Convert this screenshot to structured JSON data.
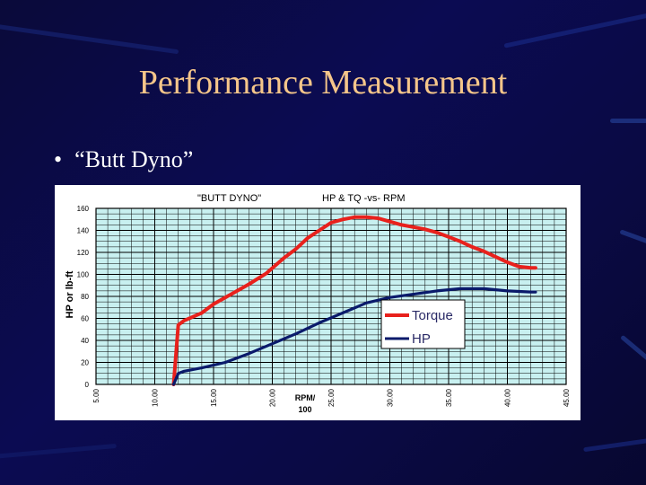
{
  "slide": {
    "title": "Performance Measurement",
    "bullet": "“Butt Dyno”",
    "colors": {
      "background": "#0b0b52",
      "title": "#f5c68a",
      "bullet": "#ffffff",
      "plot_area": "#c8f0f0",
      "grid": "#000000"
    }
  },
  "chart_data": {
    "type": "line",
    "title": "\"BUTT DYNO\"",
    "subtitle": "HP & TQ -vs- RPM",
    "ylabel": "HP or lb-ft",
    "xlabel_line1": "RPM/",
    "xlabel_line2": "100",
    "xlim": [
      5,
      45
    ],
    "ylim": [
      0,
      160
    ],
    "x_ticks": [
      "5.00",
      "10.00",
      "15.00",
      "20.00",
      "25.00",
      "30.00",
      "35.00",
      "40.00",
      "45.00"
    ],
    "y_ticks": [
      "0",
      "20",
      "40",
      "60",
      "80",
      "100",
      "120",
      "140",
      "160"
    ],
    "grid": true,
    "legend_position": "right-middle",
    "series": [
      {
        "name": "Torque",
        "color": "#e8211c",
        "points": [
          [
            11.6,
            0
          ],
          [
            12.0,
            54
          ],
          [
            12.5,
            58
          ],
          [
            14,
            65
          ],
          [
            15,
            73
          ],
          [
            16.5,
            82
          ],
          [
            18,
            91
          ],
          [
            19.5,
            101
          ],
          [
            21,
            115
          ],
          [
            22,
            123
          ],
          [
            23,
            133
          ],
          [
            24,
            140
          ],
          [
            25,
            147
          ],
          [
            26,
            150
          ],
          [
            27,
            152
          ],
          [
            28,
            152
          ],
          [
            29,
            151
          ],
          [
            30,
            148
          ],
          [
            31,
            145
          ],
          [
            32,
            143
          ],
          [
            33,
            141
          ],
          [
            34,
            138
          ],
          [
            35,
            134
          ],
          [
            36,
            130
          ],
          [
            37,
            125
          ],
          [
            38,
            121
          ],
          [
            39,
            116
          ],
          [
            40,
            111
          ],
          [
            41,
            107
          ],
          [
            42,
            106
          ],
          [
            42.4,
            106
          ]
        ]
      },
      {
        "name": "HP",
        "color": "#0a1a6b",
        "points": [
          [
            11.6,
            0
          ],
          [
            12.0,
            10
          ],
          [
            12.5,
            12
          ],
          [
            14,
            15
          ],
          [
            16,
            20
          ],
          [
            18,
            28
          ],
          [
            20,
            37
          ],
          [
            22,
            46
          ],
          [
            24,
            56
          ],
          [
            26,
            65
          ],
          [
            28,
            74
          ],
          [
            30,
            79
          ],
          [
            32,
            82
          ],
          [
            34,
            85
          ],
          [
            36,
            87
          ],
          [
            38,
            87
          ],
          [
            40,
            85
          ],
          [
            42,
            84
          ],
          [
            42.4,
            84
          ]
        ]
      }
    ]
  }
}
